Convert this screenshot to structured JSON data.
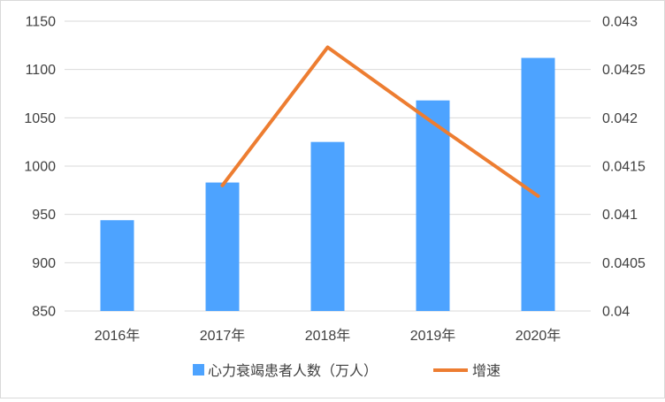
{
  "chart_data": {
    "type": "bar",
    "categories": [
      "2016年",
      "2017年",
      "2018年",
      "2019年",
      "2020年"
    ],
    "series": [
      {
        "name": "心力衰竭患者人数（万人）",
        "type": "bar",
        "axis": "left",
        "values": [
          944,
          983,
          1025,
          1068,
          1112
        ],
        "color": "#4da3ff"
      },
      {
        "name": "增速",
        "type": "line",
        "axis": "right",
        "values": [
          null,
          0.0413,
          0.04273,
          0.04195,
          0.04119
        ],
        "color": "#ed7d31"
      }
    ],
    "y_left": {
      "ylim": [
        850,
        1150
      ],
      "ticks": [
        "850",
        "900",
        "950",
        "1000",
        "1050",
        "1100",
        "1150"
      ]
    },
    "y_right": {
      "ylim": [
        0.04,
        0.043
      ],
      "ticks": [
        "0.04",
        "0.0405",
        "0.041",
        "0.0415",
        "0.042",
        "0.0425",
        "0.043"
      ]
    },
    "grid": true,
    "legend": "bottom"
  }
}
